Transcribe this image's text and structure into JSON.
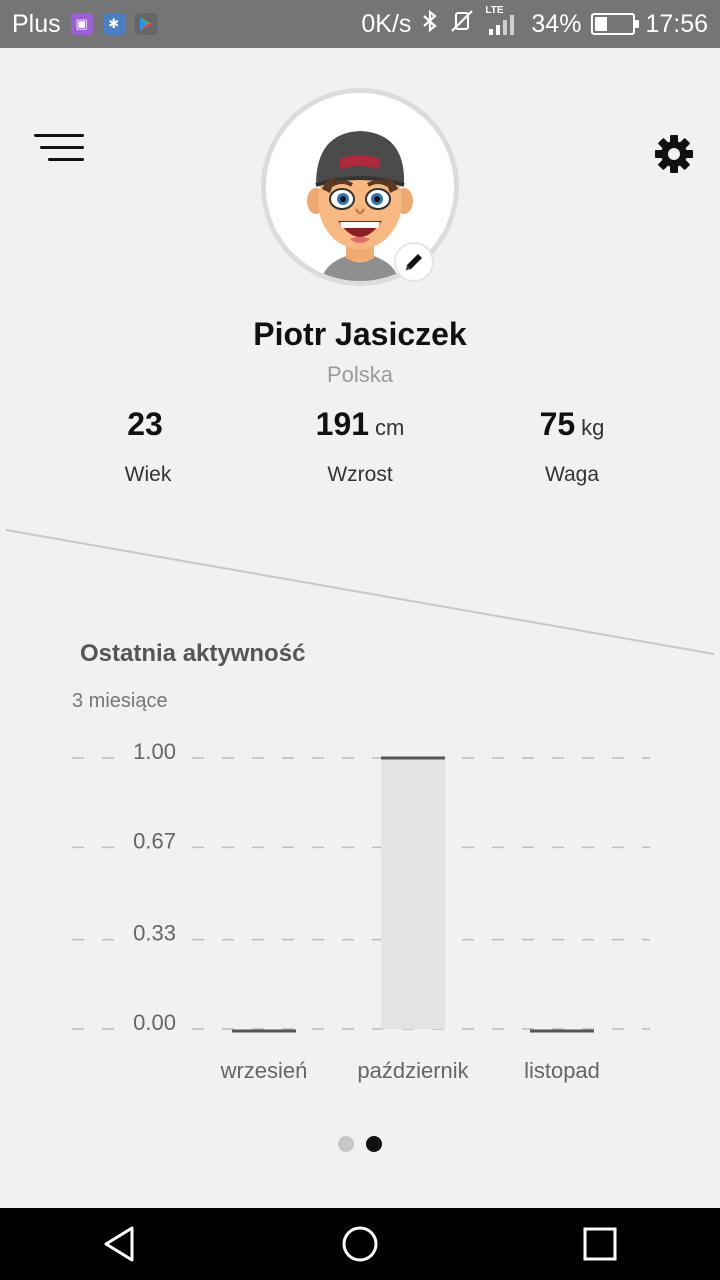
{
  "status_bar": {
    "carrier": "Plus",
    "speed": "0K/s",
    "network": "LTE",
    "battery_percent": "34%",
    "battery_level": 0.34,
    "time": "17:56"
  },
  "profile": {
    "name": "Piotr Jasiczek",
    "country": "Polska",
    "stats": [
      {
        "value": "23",
        "unit": "",
        "label": "Wiek"
      },
      {
        "value": "191",
        "unit": "cm",
        "label": "Wzrost"
      },
      {
        "value": "75",
        "unit": "kg",
        "label": "Waga"
      }
    ]
  },
  "activity": {
    "title": "Ostatnia aktywność",
    "range_label": "3 miesiące"
  },
  "chart_data": {
    "type": "bar",
    "categories": [
      "wrzesień",
      "październik",
      "listopad"
    ],
    "values": [
      0,
      1,
      0
    ],
    "ylim": [
      0,
      1
    ],
    "yticks": [
      "0.00",
      "0.33",
      "0.67",
      "1.00"
    ],
    "grid": true,
    "title": "",
    "xlabel": "",
    "ylabel": ""
  },
  "pager": {
    "count": 2,
    "active": 2
  },
  "colors": {
    "accent": "#111111",
    "bar_fill": "#e3e3e3",
    "bar_top": "#555555",
    "grid": "#bdbdbd",
    "status_bar": "#757575"
  },
  "icons": {
    "menu": "menu-icon",
    "settings": "gear-icon",
    "edit": "pencil-icon",
    "back": "back-triangle-icon",
    "home": "home-circle-icon",
    "recents": "recents-square-icon"
  }
}
